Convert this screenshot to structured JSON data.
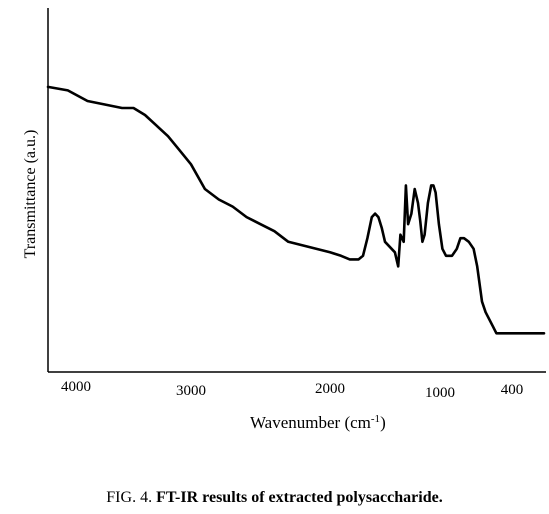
{
  "chart_data": {
    "type": "line",
    "title": "",
    "xlabel": "Wavenumber (cm",
    "xlabel_exponent": "-1",
    "xlabel_close": ")",
    "ylabel": "Transmittance (a.u.)",
    "x_ticks": [
      {
        "value": 4000,
        "label": "4000"
      },
      {
        "value": 3000,
        "label": "3000"
      },
      {
        "value": 2000,
        "label": "2000"
      },
      {
        "value": 1000,
        "label": "1000"
      },
      {
        "value": 400,
        "label": "400"
      }
    ],
    "x_reversed": true,
    "ylim": [
      0,
      1
    ],
    "grid": false,
    "legend": "none",
    "series": [
      {
        "color": "#000000",
        "x": [
          4170,
          4050,
          3900,
          3750,
          3600,
          3500,
          3400,
          3300,
          3200,
          3100,
          3000,
          2900,
          2800,
          2700,
          2600,
          2500,
          2400,
          2300,
          2200,
          2100,
          2000,
          1900,
          1820,
          1780,
          1740,
          1700,
          1660,
          1620,
          1590,
          1560,
          1530,
          1500,
          1470,
          1440,
          1410,
          1380,
          1360,
          1330,
          1310,
          1290,
          1260,
          1230,
          1200,
          1180,
          1160,
          1140,
          1110,
          1080,
          1060,
          1040,
          1010,
          980,
          950,
          920,
          900,
          860,
          830,
          800,
          760,
          720,
          690,
          650,
          620,
          590,
          560,
          530,
          500,
          460,
          420,
          380,
          340,
          300,
          250
        ],
        "y": [
          0.81,
          0.8,
          0.77,
          0.76,
          0.75,
          0.75,
          0.73,
          0.7,
          0.67,
          0.63,
          0.59,
          0.52,
          0.49,
          0.47,
          0.44,
          0.42,
          0.4,
          0.37,
          0.36,
          0.35,
          0.34,
          0.33,
          0.32,
          0.32,
          0.32,
          0.33,
          0.38,
          0.44,
          0.45,
          0.44,
          0.41,
          0.37,
          0.36,
          0.35,
          0.34,
          0.3,
          0.39,
          0.37,
          0.53,
          0.42,
          0.45,
          0.52,
          0.48,
          0.43,
          0.37,
          0.39,
          0.48,
          0.53,
          0.53,
          0.51,
          0.42,
          0.35,
          0.33,
          0.33,
          0.33,
          0.35,
          0.38,
          0.38,
          0.37,
          0.35,
          0.3,
          0.2,
          0.17,
          0.15,
          0.13,
          0.11,
          0.11,
          0.11,
          0.11,
          0.11,
          0.11,
          0.11,
          0.11
        ]
      }
    ]
  },
  "caption": {
    "prefix": "FIG. 4. ",
    "bold": "FT-IR results of extracted polysaccharide."
  }
}
